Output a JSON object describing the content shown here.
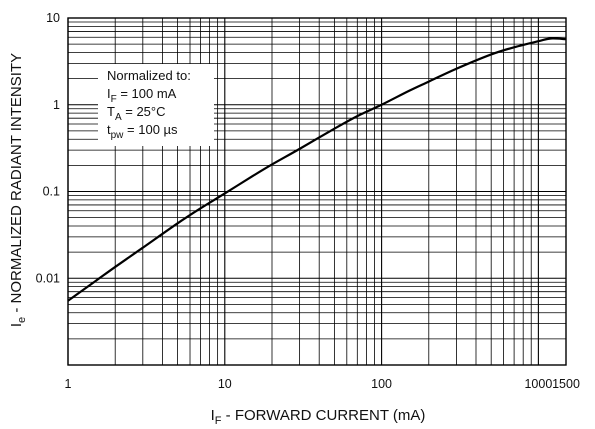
{
  "chart_data": {
    "type": "line",
    "x_scale": "log",
    "y_scale": "log",
    "xlim": [
      1,
      1500
    ],
    "ylim": [
      0.001,
      10
    ],
    "grid": true,
    "x_ticks": [
      "1",
      "10",
      "100",
      "1000",
      "1500"
    ],
    "y_ticks": [
      "10",
      "1",
      "0.1",
      "0.01"
    ],
    "xlabel": {
      "prefix": "I",
      "sub": "F",
      "suffix": " - FORWARD CURRENT (mA)"
    },
    "ylabel": {
      "prefix": "I",
      "sub": "e",
      "suffix": " - NORMALIZED RADIANT INTENSITY"
    },
    "legend": {
      "placement": "top-left",
      "title": "Normalized to:",
      "lines": [
        {
          "main": "I",
          "sub": "F",
          "rest": " = 100 mA"
        },
        {
          "main": "T",
          "sub": "A",
          "rest": " = 25°C"
        },
        {
          "main": "t",
          "sub": "pw",
          "rest": " = 100 µs"
        }
      ]
    },
    "series": [
      {
        "x": [
          1,
          1.5,
          2,
          3,
          5,
          7,
          10,
          15,
          20,
          30,
          50,
          70,
          100,
          150,
          200,
          300,
          500,
          700,
          1000,
          1200,
          1500
        ],
        "y": [
          0.0055,
          0.0093,
          0.0135,
          0.0225,
          0.043,
          0.064,
          0.095,
          0.15,
          0.205,
          0.31,
          0.53,
          0.74,
          1.0,
          1.45,
          1.85,
          2.6,
          3.8,
          4.6,
          5.4,
          5.8,
          5.7
        ]
      }
    ],
    "style": {
      "line_color": "#000000",
      "grid_color": "#000000",
      "background": "#ffffff"
    }
  }
}
